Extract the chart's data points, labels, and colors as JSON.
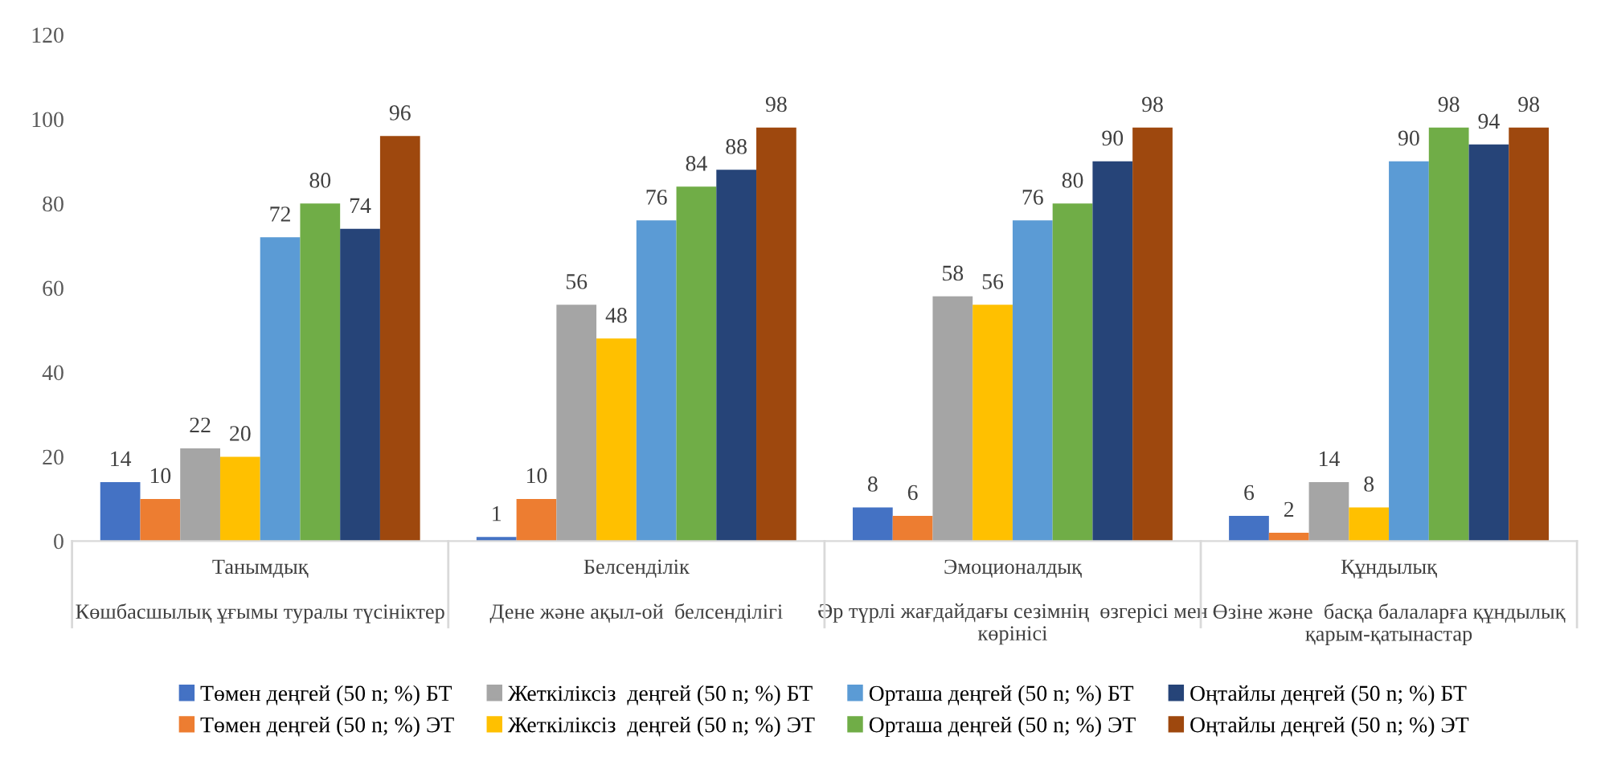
{
  "chart_data": {
    "type": "bar",
    "categories": [
      "Танымдық\n\nКөшбасшылық ұғымы туралы түсініктер",
      "Белсенділік\n\nДене және ақыл-ой  белсенділігі",
      "Эмоционалдық\n\nӘр түрлі жағдайдағы сезімнің  өзгерісі мен\nкөрінісі",
      "Құндылық\n\nӨзіне және  басқа балаларға құндылық\nқарым-қатынастар"
    ],
    "series": [
      {
        "name": "Төмен деңгей (50 n; %) БТ",
        "color": "#4472c4",
        "values": [
          14,
          1,
          8,
          6
        ]
      },
      {
        "name": "Төмен деңгей (50 n; %) ЭТ",
        "color": "#ed7d31",
        "values": [
          10,
          10,
          6,
          2
        ]
      },
      {
        "name": "Жеткіліксіз  деңгей (50 n; %) БТ",
        "color": "#a5a5a5",
        "values": [
          22,
          56,
          58,
          14
        ]
      },
      {
        "name": "Жеткіліксіз  деңгей (50 n; %) ЭТ",
        "color": "#ffc000",
        "values": [
          20,
          48,
          56,
          8
        ]
      },
      {
        "name": "Орташа деңгей (50 n; %) БТ",
        "color": "#5b9bd5",
        "values": [
          72,
          76,
          76,
          90
        ]
      },
      {
        "name": "Орташа деңгей (50 n; %) ЭТ",
        "color": "#70ad47",
        "values": [
          80,
          84,
          80,
          98
        ]
      },
      {
        "name": "Оңтайлы деңгей (50 n; %) БТ",
        "color": "#264478",
        "values": [
          74,
          88,
          90,
          94
        ]
      },
      {
        "name": "Оңтайлы деңгей (50 n; %) ЭТ",
        "color": "#9e480e",
        "values": [
          96,
          98,
          98,
          98
        ]
      }
    ],
    "ylim": [
      0,
      120
    ],
    "yticks": [
      0,
      20,
      40,
      60,
      80,
      100,
      120
    ],
    "data_labels": true,
    "grid": false,
    "legend": "bottom"
  }
}
